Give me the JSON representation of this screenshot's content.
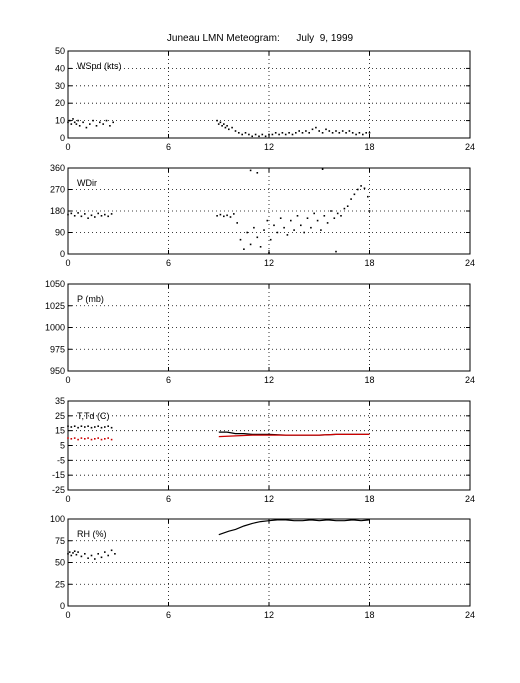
{
  "title": "Juneau LMN Meteogram:      July  9, 1999",
  "colors": {
    "primary": "#000000",
    "dewpoint": "#cc0000",
    "grid": "#000000"
  },
  "chart_data": [
    {
      "type": "scatter",
      "label": "WSpd (kts)",
      "xlim": [
        0,
        24
      ],
      "xticks": [
        "0",
        "6",
        "12",
        "18",
        "24"
      ],
      "ylim": [
        0,
        50
      ],
      "yticks": [
        "0",
        "10",
        "20",
        "30",
        "40",
        "50"
      ],
      "grid": true,
      "series": [
        {
          "color": "#000000",
          "points": [
            [
              0.0,
              9
            ],
            [
              0.1,
              10
            ],
            [
              0.2,
              8
            ],
            [
              0.3,
              11
            ],
            [
              0.4,
              9
            ],
            [
              0.5,
              8
            ],
            [
              0.6,
              10
            ],
            [
              0.7,
              7
            ],
            [
              0.9,
              9
            ],
            [
              1.1,
              6
            ],
            [
              1.3,
              8
            ],
            [
              1.5,
              10
            ],
            [
              1.7,
              7
            ],
            [
              1.9,
              9
            ],
            [
              2.1,
              8
            ],
            [
              2.3,
              10
            ],
            [
              2.5,
              7
            ],
            [
              2.7,
              9
            ],
            [
              8.9,
              10
            ],
            [
              9.0,
              8
            ],
            [
              9.1,
              9
            ],
            [
              9.2,
              7
            ],
            [
              9.3,
              8
            ],
            [
              9.4,
              6
            ],
            [
              9.5,
              7
            ],
            [
              9.6,
              5
            ],
            [
              9.8,
              6
            ],
            [
              10.0,
              4
            ],
            [
              10.2,
              3
            ],
            [
              10.4,
              2
            ],
            [
              10.6,
              3
            ],
            [
              10.8,
              2
            ],
            [
              11.0,
              1
            ],
            [
              11.2,
              2
            ],
            [
              11.4,
              1
            ],
            [
              11.6,
              2
            ],
            [
              11.8,
              1
            ],
            [
              12.0,
              2
            ],
            [
              12.2,
              2
            ],
            [
              12.4,
              3
            ],
            [
              12.6,
              2
            ],
            [
              12.8,
              3
            ],
            [
              13.0,
              2
            ],
            [
              13.2,
              3
            ],
            [
              13.4,
              2
            ],
            [
              13.6,
              3
            ],
            [
              13.8,
              4
            ],
            [
              14.0,
              3
            ],
            [
              14.2,
              4
            ],
            [
              14.4,
              3
            ],
            [
              14.6,
              5
            ],
            [
              14.8,
              6
            ],
            [
              15.0,
              4
            ],
            [
              15.2,
              3
            ],
            [
              15.4,
              5
            ],
            [
              15.6,
              4
            ],
            [
              15.8,
              3
            ],
            [
              16.0,
              4
            ],
            [
              16.2,
              3
            ],
            [
              16.4,
              4
            ],
            [
              16.6,
              3
            ],
            [
              16.8,
              4
            ],
            [
              17.0,
              3
            ],
            [
              17.2,
              2
            ],
            [
              17.4,
              3
            ],
            [
              17.6,
              2
            ],
            [
              17.8,
              3
            ],
            [
              18.0,
              3
            ]
          ]
        }
      ]
    },
    {
      "type": "scatter",
      "label": "WDir",
      "xlim": [
        0,
        24
      ],
      "xticks": [
        "0",
        "6",
        "12",
        "18",
        "24"
      ],
      "ylim": [
        0,
        360
      ],
      "yticks": [
        "0",
        "90",
        "180",
        "270",
        "360"
      ],
      "grid": true,
      "series": [
        {
          "color": "#000000",
          "points": [
            [
              0.0,
              165
            ],
            [
              0.2,
              170
            ],
            [
              0.4,
              160
            ],
            [
              0.6,
              172
            ],
            [
              0.8,
              158
            ],
            [
              1.0,
              168
            ],
            [
              1.2,
              150
            ],
            [
              1.4,
              162
            ],
            [
              1.6,
              155
            ],
            [
              1.8,
              170
            ],
            [
              2.0,
              160
            ],
            [
              2.2,
              165
            ],
            [
              2.4,
              158
            ],
            [
              2.6,
              168
            ],
            [
              8.9,
              160
            ],
            [
              9.1,
              165
            ],
            [
              9.3,
              158
            ],
            [
              9.5,
              162
            ],
            [
              9.7,
              155
            ],
            [
              9.9,
              168
            ],
            [
              10.1,
              130
            ],
            [
              10.3,
              60
            ],
            [
              10.5,
              20
            ],
            [
              10.7,
              90
            ],
            [
              10.9,
              40
            ],
            [
              11.1,
              110
            ],
            [
              11.3,
              70
            ],
            [
              11.5,
              30
            ],
            [
              11.7,
              100
            ],
            [
              11.9,
              140
            ],
            [
              12.1,
              60
            ],
            [
              12.3,
              120
            ],
            [
              12.5,
              90
            ],
            [
              12.7,
              150
            ],
            [
              12.9,
              110
            ],
            [
              13.1,
              80
            ],
            [
              13.3,
              140
            ],
            [
              13.5,
              100
            ],
            [
              13.7,
              160
            ],
            [
              13.9,
              120
            ],
            [
              14.1,
              90
            ],
            [
              14.3,
              150
            ],
            [
              14.5,
              110
            ],
            [
              14.7,
              170
            ],
            [
              14.9,
              140
            ],
            [
              15.1,
              100
            ],
            [
              15.3,
              160
            ],
            [
              15.5,
              130
            ],
            [
              15.7,
              180
            ],
            [
              15.9,
              150
            ],
            [
              16.1,
              170
            ],
            [
              16.3,
              160
            ],
            [
              16.5,
              190
            ],
            [
              16.7,
              200
            ],
            [
              16.9,
              230
            ],
            [
              17.1,
              250
            ],
            [
              17.3,
              270
            ],
            [
              17.5,
              285
            ],
            [
              17.7,
              275
            ],
            [
              17.9,
              240
            ],
            [
              18.0,
              180
            ],
            [
              10.9,
              350
            ],
            [
              11.3,
              340
            ],
            [
              15.2,
              355
            ],
            [
              16.0,
              10
            ],
            [
              12.0,
              5
            ]
          ]
        }
      ]
    },
    {
      "type": "scatter",
      "label": "P (mb)",
      "xlim": [
        0,
        24
      ],
      "xticks": [
        "0",
        "6",
        "12",
        "18",
        "24"
      ],
      "ylim": [
        950,
        1050
      ],
      "yticks": [
        "950",
        "975",
        "1000",
        "1025",
        "1050"
      ],
      "grid": true,
      "series": []
    },
    {
      "type": "line",
      "label": "T,Td (C)",
      "xlim": [
        0,
        24
      ],
      "xticks": [
        "0",
        "6",
        "12",
        "18",
        "24"
      ],
      "ylim": [
        -25,
        35
      ],
      "yticks": [
        "-25",
        "-15",
        "-5",
        "5",
        "15",
        "25",
        "35"
      ],
      "grid": true,
      "series": [
        {
          "color": "#000000",
          "style": "dots",
          "points": [
            [
              0.0,
              18
            ],
            [
              0.2,
              17.5
            ],
            [
              0.4,
              18
            ],
            [
              0.6,
              17
            ],
            [
              0.8,
              18
            ],
            [
              1.0,
              17.5
            ],
            [
              1.2,
              18
            ],
            [
              1.4,
              17
            ],
            [
              1.6,
              17.5
            ],
            [
              1.8,
              18
            ],
            [
              2.0,
              17
            ],
            [
              2.2,
              17.5
            ],
            [
              2.4,
              18
            ],
            [
              2.6,
              17
            ]
          ]
        },
        {
          "color": "#cc0000",
          "style": "dots",
          "points": [
            [
              0.0,
              10
            ],
            [
              0.2,
              9.5
            ],
            [
              0.4,
              10
            ],
            [
              0.6,
              9
            ],
            [
              0.8,
              10
            ],
            [
              1.0,
              9.5
            ],
            [
              1.2,
              10
            ],
            [
              1.4,
              9
            ],
            [
              1.6,
              9.5
            ],
            [
              1.8,
              10
            ],
            [
              2.0,
              9
            ],
            [
              2.2,
              9.5
            ],
            [
              2.4,
              10
            ],
            [
              2.6,
              9
            ]
          ]
        },
        {
          "color": "#000000",
          "style": "line",
          "points": [
            [
              9.0,
              14
            ],
            [
              9.5,
              14
            ],
            [
              10.0,
              13
            ],
            [
              10.5,
              13
            ],
            [
              11.0,
              12.5
            ],
            [
              12.0,
              12.5
            ],
            [
              13.0,
              12
            ],
            [
              14.0,
              12
            ],
            [
              15.0,
              12
            ],
            [
              16.0,
              12.5
            ],
            [
              17.0,
              12.5
            ],
            [
              18.0,
              12.5
            ]
          ]
        },
        {
          "color": "#cc0000",
          "style": "line",
          "points": [
            [
              9.0,
              11
            ],
            [
              10.0,
              11.5
            ],
            [
              11.0,
              12
            ],
            [
              12.0,
              12
            ],
            [
              13.0,
              12
            ],
            [
              14.0,
              12
            ],
            [
              15.0,
              12
            ],
            [
              16.0,
              12.5
            ],
            [
              17.0,
              12.5
            ],
            [
              18.0,
              12.5
            ]
          ]
        }
      ]
    },
    {
      "type": "line",
      "label": "RH (%)",
      "xlim": [
        0,
        24
      ],
      "xticks": [
        "0",
        "6",
        "12",
        "18",
        "24"
      ],
      "ylim": [
        0,
        100
      ],
      "yticks": [
        "0",
        "25",
        "50",
        "75",
        "100"
      ],
      "grid": true,
      "series": [
        {
          "color": "#000000",
          "style": "dots",
          "points": [
            [
              0.0,
              60
            ],
            [
              0.1,
              62
            ],
            [
              0.2,
              58
            ],
            [
              0.3,
              61
            ],
            [
              0.4,
              63
            ],
            [
              0.5,
              59
            ],
            [
              0.6,
              62
            ],
            [
              0.8,
              57
            ],
            [
              1.0,
              60
            ],
            [
              1.2,
              55
            ],
            [
              1.4,
              58
            ],
            [
              1.6,
              54
            ],
            [
              1.8,
              60
            ],
            [
              2.0,
              56
            ],
            [
              2.2,
              62
            ],
            [
              2.4,
              58
            ],
            [
              2.6,
              64
            ],
            [
              2.8,
              60
            ]
          ]
        },
        {
          "color": "#000000",
          "style": "line",
          "points": [
            [
              9.0,
              82
            ],
            [
              9.3,
              84
            ],
            [
              9.6,
              86
            ],
            [
              10.0,
              88
            ],
            [
              10.5,
              92
            ],
            [
              11.0,
              95
            ],
            [
              11.5,
              97
            ],
            [
              12.0,
              98
            ],
            [
              12.5,
              99
            ],
            [
              13.0,
              99
            ],
            [
              13.5,
              98
            ],
            [
              14.0,
              98
            ],
            [
              14.5,
              99
            ],
            [
              15.0,
              98
            ],
            [
              15.5,
              99
            ],
            [
              16.0,
              98
            ],
            [
              16.5,
              98
            ],
            [
              17.0,
              99
            ],
            [
              17.5,
              98
            ],
            [
              18.0,
              99
            ]
          ]
        }
      ]
    }
  ]
}
